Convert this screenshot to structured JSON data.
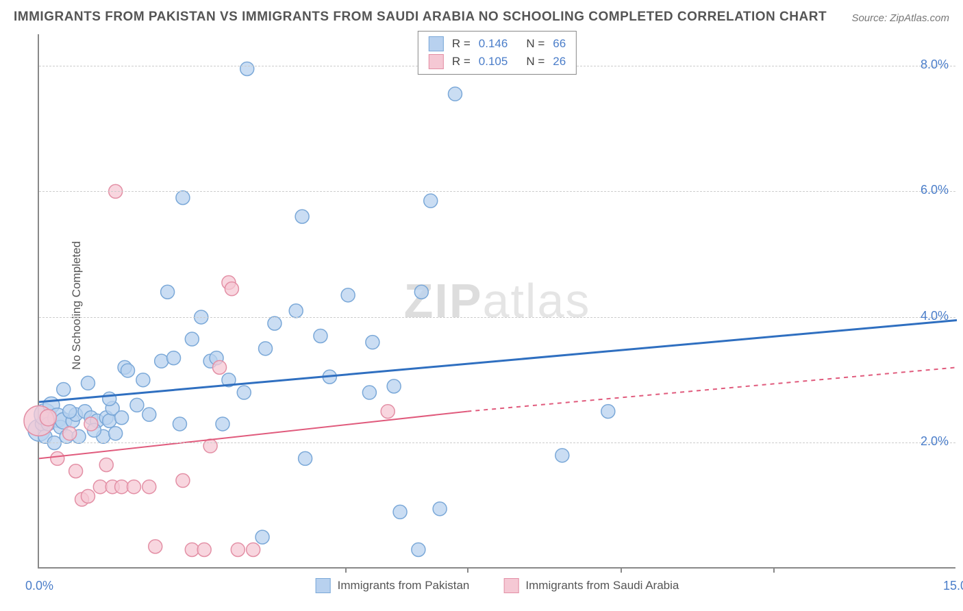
{
  "title": "IMMIGRANTS FROM PAKISTAN VS IMMIGRANTS FROM SAUDI ARABIA NO SCHOOLING COMPLETED CORRELATION CHART",
  "source": "Source: ZipAtlas.com",
  "ylabel": "No Schooling Completed",
  "watermark": {
    "part1": "ZIP",
    "part2": "atlas"
  },
  "chart": {
    "type": "scatter",
    "xlim": [
      0.0,
      15.0
    ],
    "ylim": [
      0.0,
      8.5
    ],
    "x_ticks_labeled": [
      {
        "v": 0.0,
        "label": "0.0%"
      },
      {
        "v": 15.0,
        "label": "15.0%"
      }
    ],
    "x_tick_marks": [
      5.0,
      7.0,
      9.5,
      12.0
    ],
    "y_ticks": [
      {
        "v": 2.0,
        "label": "2.0%"
      },
      {
        "v": 4.0,
        "label": "4.0%"
      },
      {
        "v": 6.0,
        "label": "6.0%"
      },
      {
        "v": 8.0,
        "label": "8.0%"
      }
    ],
    "background_color": "#ffffff",
    "grid_color": "#cccccc",
    "axis_color": "#888888"
  },
  "series": [
    {
      "name": "Immigrants from Pakistan",
      "marker_fill": "#b8d1ef",
      "marker_stroke": "#7aa8d8",
      "marker_opacity": 0.75,
      "line_color": "#2f6fc0",
      "line_width": 3,
      "line_dash_tail": false,
      "r": 0.146,
      "n": 66,
      "r_display": "0.146",
      "n_display": "66",
      "trend": {
        "x1": 0.0,
        "y1": 2.65,
        "x2": 15.0,
        "y2": 3.95
      },
      "points": [
        {
          "x": 0.0,
          "y": 2.2,
          "r": 16
        },
        {
          "x": 0.05,
          "y": 2.3,
          "r": 10
        },
        {
          "x": 0.1,
          "y": 2.45,
          "r": 16
        },
        {
          "x": 0.1,
          "y": 2.1,
          "r": 10
        },
        {
          "x": 0.15,
          "y": 2.3,
          "r": 10
        },
        {
          "x": 0.2,
          "y": 2.6,
          "r": 12
        },
        {
          "x": 0.25,
          "y": 2.0,
          "r": 10
        },
        {
          "x": 0.3,
          "y": 2.4,
          "r": 14
        },
        {
          "x": 0.35,
          "y": 2.25,
          "r": 10
        },
        {
          "x": 0.4,
          "y": 2.35,
          "r": 12
        },
        {
          "x": 0.45,
          "y": 2.1,
          "r": 10
        },
        {
          "x": 0.55,
          "y": 2.35,
          "r": 10
        },
        {
          "x": 0.6,
          "y": 2.45,
          "r": 10
        },
        {
          "x": 0.65,
          "y": 2.1,
          "r": 10
        },
        {
          "x": 0.75,
          "y": 2.5,
          "r": 10
        },
        {
          "x": 0.85,
          "y": 2.4,
          "r": 10
        },
        {
          "x": 0.95,
          "y": 2.35,
          "r": 10
        },
        {
          "x": 1.05,
          "y": 2.1,
          "r": 10
        },
        {
          "x": 1.1,
          "y": 2.4,
          "r": 10
        },
        {
          "x": 1.15,
          "y": 2.35,
          "r": 10
        },
        {
          "x": 1.2,
          "y": 2.55,
          "r": 10
        },
        {
          "x": 1.35,
          "y": 2.4,
          "r": 10
        },
        {
          "x": 1.15,
          "y": 2.7,
          "r": 10
        },
        {
          "x": 0.8,
          "y": 2.95,
          "r": 10
        },
        {
          "x": 0.4,
          "y": 2.85,
          "r": 10
        },
        {
          "x": 1.4,
          "y": 3.2,
          "r": 10
        },
        {
          "x": 1.7,
          "y": 3.0,
          "r": 10
        },
        {
          "x": 1.8,
          "y": 2.45,
          "r": 10
        },
        {
          "x": 2.0,
          "y": 3.3,
          "r": 10
        },
        {
          "x": 2.1,
          "y": 4.4,
          "r": 10
        },
        {
          "x": 2.2,
          "y": 3.35,
          "r": 10
        },
        {
          "x": 2.3,
          "y": 2.3,
          "r": 10
        },
        {
          "x": 2.35,
          "y": 5.9,
          "r": 10
        },
        {
          "x": 2.65,
          "y": 4.0,
          "r": 10
        },
        {
          "x": 2.8,
          "y": 3.3,
          "r": 10
        },
        {
          "x": 2.9,
          "y": 3.35,
          "r": 10
        },
        {
          "x": 3.0,
          "y": 2.3,
          "r": 10
        },
        {
          "x": 3.35,
          "y": 2.8,
          "r": 10
        },
        {
          "x": 3.4,
          "y": 7.95,
          "r": 10
        },
        {
          "x": 3.65,
          "y": 0.5,
          "r": 10
        },
        {
          "x": 3.7,
          "y": 3.5,
          "r": 10
        },
        {
          "x": 3.85,
          "y": 3.9,
          "r": 10
        },
        {
          "x": 4.2,
          "y": 4.1,
          "r": 10
        },
        {
          "x": 4.3,
          "y": 5.6,
          "r": 10
        },
        {
          "x": 4.35,
          "y": 1.75,
          "r": 10
        },
        {
          "x": 4.75,
          "y": 3.05,
          "r": 10
        },
        {
          "x": 5.05,
          "y": 4.35,
          "r": 10
        },
        {
          "x": 5.4,
          "y": 2.8,
          "r": 10
        },
        {
          "x": 5.45,
          "y": 3.6,
          "r": 10
        },
        {
          "x": 5.8,
          "y": 2.9,
          "r": 10
        },
        {
          "x": 5.9,
          "y": 0.9,
          "r": 10
        },
        {
          "x": 6.2,
          "y": 0.3,
          "r": 10
        },
        {
          "x": 6.25,
          "y": 4.4,
          "r": 10
        },
        {
          "x": 6.4,
          "y": 5.85,
          "r": 10
        },
        {
          "x": 6.55,
          "y": 0.95,
          "r": 10
        },
        {
          "x": 6.8,
          "y": 7.55,
          "r": 10
        },
        {
          "x": 8.55,
          "y": 1.8,
          "r": 10
        },
        {
          "x": 9.3,
          "y": 2.5,
          "r": 10
        },
        {
          "x": 1.45,
          "y": 3.15,
          "r": 10
        },
        {
          "x": 0.5,
          "y": 2.5,
          "r": 10
        },
        {
          "x": 1.6,
          "y": 2.6,
          "r": 10
        },
        {
          "x": 0.9,
          "y": 2.2,
          "r": 10
        },
        {
          "x": 1.25,
          "y": 2.15,
          "r": 10
        },
        {
          "x": 2.5,
          "y": 3.65,
          "r": 10
        },
        {
          "x": 3.1,
          "y": 3.0,
          "r": 10
        },
        {
          "x": 4.6,
          "y": 3.7,
          "r": 10
        }
      ]
    },
    {
      "name": "Immigrants from Saudi Arabia",
      "marker_fill": "#f5c8d4",
      "marker_stroke": "#e38fa5",
      "marker_opacity": 0.75,
      "line_color": "#e05a7c",
      "line_width": 2,
      "line_dash_tail": true,
      "r": 0.105,
      "n": 26,
      "r_display": "0.105",
      "n_display": "26",
      "trend": {
        "x1": 0.0,
        "y1": 1.75,
        "x2_solid": 7.0,
        "y2_solid": 2.5,
        "x2": 15.0,
        "y2": 3.2
      },
      "points": [
        {
          "x": 0.0,
          "y": 2.35,
          "r": 22
        },
        {
          "x": 0.15,
          "y": 2.4,
          "r": 12
        },
        {
          "x": 0.3,
          "y": 1.75,
          "r": 10
        },
        {
          "x": 0.5,
          "y": 2.15,
          "r": 10
        },
        {
          "x": 0.6,
          "y": 1.55,
          "r": 10
        },
        {
          "x": 0.7,
          "y": 1.1,
          "r": 10
        },
        {
          "x": 0.8,
          "y": 1.15,
          "r": 10
        },
        {
          "x": 0.85,
          "y": 2.3,
          "r": 10
        },
        {
          "x": 1.0,
          "y": 1.3,
          "r": 10
        },
        {
          "x": 1.1,
          "y": 1.65,
          "r": 10
        },
        {
          "x": 1.2,
          "y": 1.3,
          "r": 10
        },
        {
          "x": 1.25,
          "y": 6.0,
          "r": 10
        },
        {
          "x": 1.35,
          "y": 1.3,
          "r": 10
        },
        {
          "x": 1.55,
          "y": 1.3,
          "r": 10
        },
        {
          "x": 1.8,
          "y": 1.3,
          "r": 10
        },
        {
          "x": 1.9,
          "y": 0.35,
          "r": 10
        },
        {
          "x": 2.35,
          "y": 1.4,
          "r": 10
        },
        {
          "x": 2.5,
          "y": 0.3,
          "r": 10
        },
        {
          "x": 2.7,
          "y": 0.3,
          "r": 10
        },
        {
          "x": 2.8,
          "y": 1.95,
          "r": 10
        },
        {
          "x": 2.95,
          "y": 3.2,
          "r": 10
        },
        {
          "x": 3.1,
          "y": 4.55,
          "r": 10
        },
        {
          "x": 3.15,
          "y": 4.45,
          "r": 10
        },
        {
          "x": 3.25,
          "y": 0.3,
          "r": 10
        },
        {
          "x": 3.5,
          "y": 0.3,
          "r": 10
        },
        {
          "x": 5.7,
          "y": 2.5,
          "r": 10
        }
      ]
    }
  ],
  "legend_top": {
    "r_label": "R =",
    "n_label": "N ="
  },
  "legend_bottom": {
    "items": [
      {
        "idx": 0
      },
      {
        "idx": 1
      }
    ]
  }
}
